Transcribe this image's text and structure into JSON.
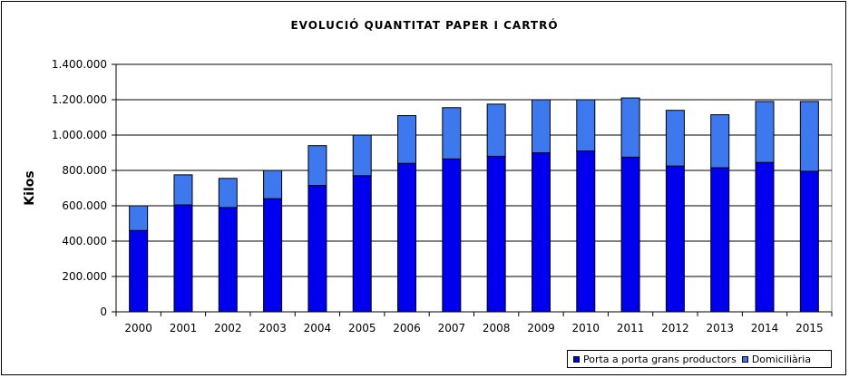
{
  "chart_data": {
    "type": "bar",
    "stacked": true,
    "title": "EVOLUCIÓ  QUANTITAT  PAPER  I  CARTRÓ",
    "ylabel": "Kilos",
    "xlabel": "",
    "ylim": [
      0,
      1400000
    ],
    "ytick_values": [
      0,
      200000,
      400000,
      600000,
      800000,
      1000000,
      1200000,
      1400000
    ],
    "ytick_labels": [
      "0",
      "200.000",
      "400.000",
      "600.000",
      "800.000",
      "1.000.000",
      "1.200.000",
      "1.400.000"
    ],
    "grid": true,
    "legend_position": "bottom-right",
    "categories": [
      "2000",
      "2001",
      "2002",
      "2003",
      "2004",
      "2005",
      "2006",
      "2007",
      "2008",
      "2009",
      "2010",
      "2011",
      "2012",
      "2013",
      "2014",
      "2015"
    ],
    "series": [
      {
        "name": "Porta a porta grans productors",
        "color": "#0000ee",
        "values": [
          460000,
          605000,
          590000,
          640000,
          715000,
          770000,
          840000,
          865000,
          880000,
          900000,
          910000,
          875000,
          825000,
          815000,
          845000,
          795000
        ]
      },
      {
        "name": "Domiciliària",
        "color": "#3d78ee",
        "values": [
          140000,
          170000,
          165000,
          160000,
          225000,
          230000,
          270000,
          290000,
          295000,
          300000,
          290000,
          335000,
          315000,
          300000,
          345000,
          395000
        ]
      }
    ]
  }
}
